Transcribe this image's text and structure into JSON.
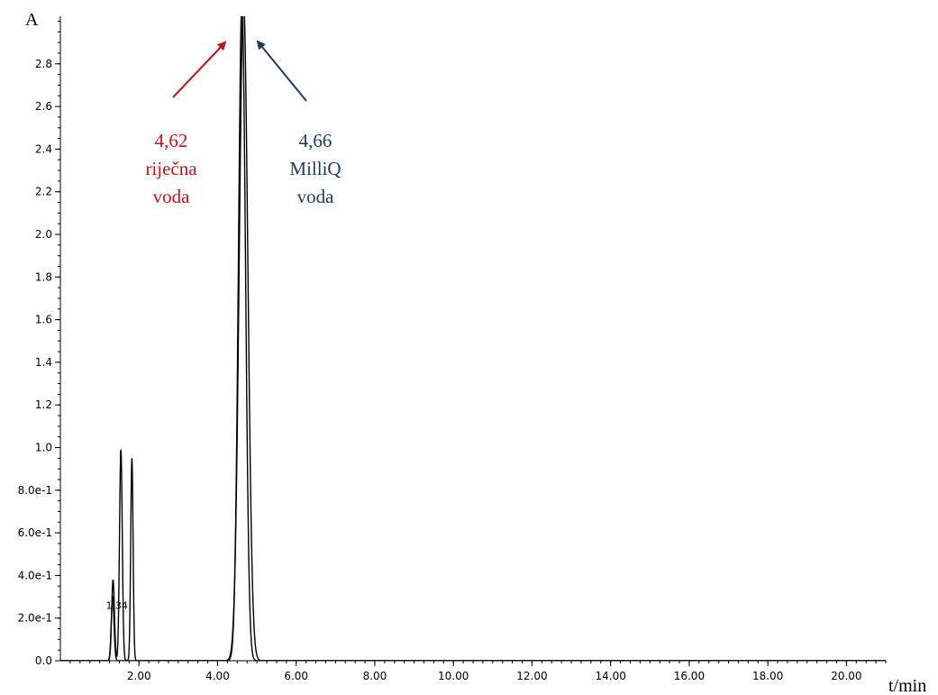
{
  "chart_data": {
    "type": "line",
    "title": "",
    "xlabel": "t/min",
    "ylabel": "A",
    "xlim": [
      0,
      21
    ],
    "ylim": [
      0,
      3.0
    ],
    "x_ticks": [
      2.0,
      4.0,
      6.0,
      8.0,
      10.0,
      12.0,
      14.0,
      16.0,
      18.0,
      20.0
    ],
    "x_tick_labels": [
      "2.00",
      "4.00",
      "6.00",
      "8.00",
      "10.00",
      "12.00",
      "14.00",
      "16.00",
      "18.00",
      "20.00"
    ],
    "y_ticks": [
      0,
      0.2,
      0.4,
      0.6,
      0.8,
      1.0,
      1.2,
      1.4,
      1.6,
      1.8,
      2.0,
      2.2,
      2.4,
      2.6,
      2.8
    ],
    "y_tick_labels": [
      "0.0",
      "2.0e-1",
      "4.0e-1",
      "6.0e-1",
      "8.0e-1",
      "1.0",
      "1.2",
      "1.4",
      "1.6",
      "1.8",
      "2.0",
      "2.2",
      "2.4",
      "2.6",
      "2.8"
    ],
    "grid": false,
    "series": [
      {
        "color": "#000000",
        "peaks": [
          {
            "rt": 1.34,
            "height": 0.38,
            "sigma": 0.035
          },
          {
            "rt": 1.54,
            "height": 0.99,
            "sigma": 0.035
          },
          {
            "rt": 4.62,
            "height": 3.1,
            "sigma": 0.09
          }
        ],
        "points": [
          [
            0.0,
            0.0
          ],
          [
            1.15,
            0.0
          ],
          [
            1.25,
            0.1
          ],
          [
            1.34,
            0.38
          ],
          [
            1.42,
            0.08
          ],
          [
            1.46,
            0.3
          ],
          [
            1.54,
            0.99
          ],
          [
            1.62,
            0.25
          ],
          [
            1.7,
            0.0
          ],
          [
            4.3,
            0.0
          ],
          [
            4.45,
            0.3
          ],
          [
            4.55,
            1.4
          ],
          [
            4.62,
            3.1
          ],
          [
            4.7,
            1.5
          ],
          [
            4.8,
            0.3
          ],
          [
            4.95,
            0.0
          ],
          [
            21.0,
            0.0
          ]
        ]
      },
      {
        "color": "#000000",
        "peaks": [
          {
            "rt": 1.33,
            "height": 0.3,
            "sigma": 0.035
          },
          {
            "rt": 1.82,
            "height": 0.95,
            "sigma": 0.03
          },
          {
            "rt": 4.66,
            "height": 3.1,
            "sigma": 0.11
          }
        ],
        "points": [
          [
            0.0,
            0.0
          ],
          [
            1.25,
            0.0
          ],
          [
            1.33,
            0.3
          ],
          [
            1.42,
            0.0
          ],
          [
            1.72,
            0.0
          ],
          [
            1.78,
            0.4
          ],
          [
            1.82,
            0.95
          ],
          [
            1.87,
            0.3
          ],
          [
            1.95,
            0.0
          ],
          [
            4.4,
            0.0
          ],
          [
            4.55,
            0.5
          ],
          [
            4.66,
            3.1
          ],
          [
            4.8,
            2.9
          ],
          [
            4.9,
            0.9
          ],
          [
            5.05,
            0.2
          ],
          [
            5.3,
            0.0
          ],
          [
            21.0,
            0.0
          ]
        ]
      }
    ],
    "annotations": [
      {
        "lines": [
          "4,62",
          "riječna",
          "voda"
        ],
        "color": "#c0141c",
        "points_to": {
          "x": 4.55,
          "y": 3.0
        }
      },
      {
        "lines": [
          "4,66",
          "MilliQ",
          "voda"
        ],
        "color": "#1f3a5f",
        "points_to": {
          "x": 4.85,
          "y": 2.95
        }
      }
    ],
    "peak_labels": [
      {
        "text": "1.34",
        "x": 1.34,
        "y": 0.26
      }
    ]
  }
}
